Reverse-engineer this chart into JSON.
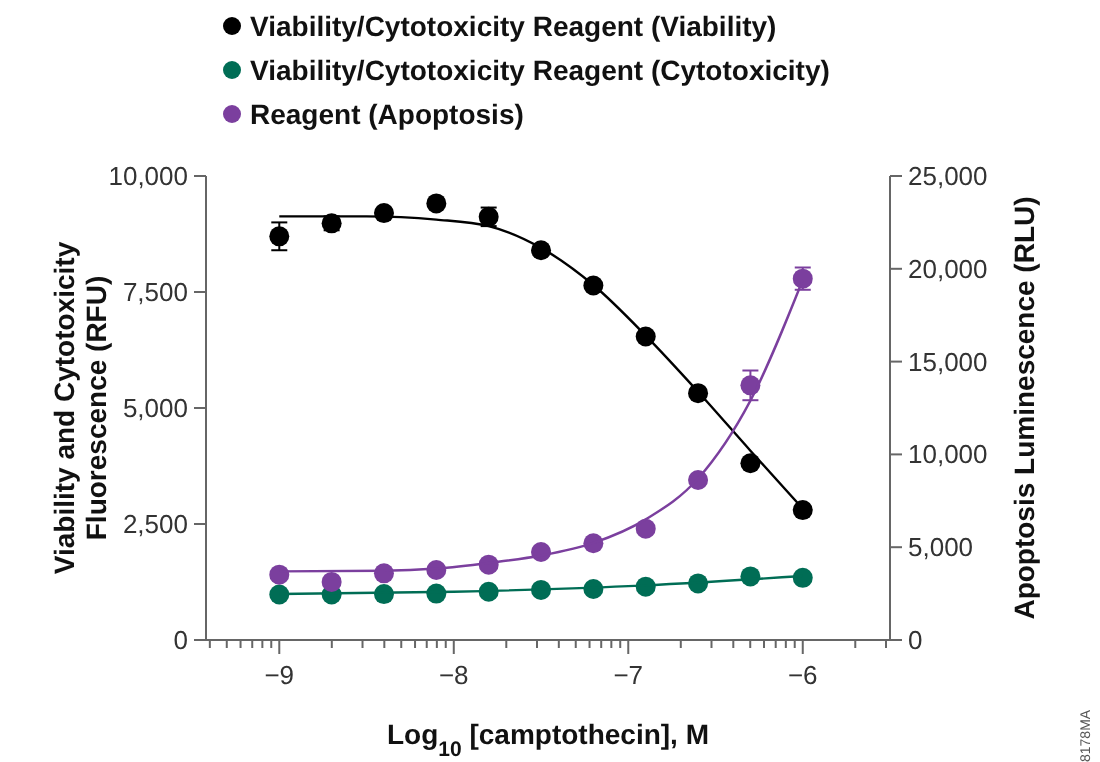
{
  "chart_data": {
    "type": "scatter",
    "xlabel": "Log$_{10}$ [camptothecin], M",
    "ylabel": "Viability and Cytotoxicity\nFluorescence (RFU)",
    "y2label": "Apoptosis Luminescence (RLU)",
    "annotations": [
      "8178MA"
    ],
    "x": [
      -9,
      -8.7,
      -8.4,
      -8.1,
      -7.8,
      -7.5,
      -7.2,
      -6.9,
      -6.6,
      -6.3,
      -6
    ],
    "xlim": [
      -9.42,
      -5.5
    ],
    "xticks": [
      {
        "value": -9.398,
        "label": null
      },
      {
        "value": -9.301,
        "label": null
      },
      {
        "value": -9.222,
        "label": null
      },
      {
        "value": -9.155,
        "label": null
      },
      {
        "value": -9.097,
        "label": null
      },
      {
        "value": -9.046,
        "label": null
      },
      {
        "value": -9,
        "label": "−9"
      },
      {
        "value": -8.699,
        "label": null
      },
      {
        "value": -8.523,
        "label": null
      },
      {
        "value": -8.398,
        "label": null
      },
      {
        "value": -8.301,
        "label": null
      },
      {
        "value": -8.222,
        "label": null
      },
      {
        "value": -8.155,
        "label": null
      },
      {
        "value": -8.097,
        "label": null
      },
      {
        "value": -8.046,
        "label": null
      },
      {
        "value": -8,
        "label": "−8"
      },
      {
        "value": -7.699,
        "label": null
      },
      {
        "value": -7.523,
        "label": null
      },
      {
        "value": -7.398,
        "label": null
      },
      {
        "value": -7.301,
        "label": null
      },
      {
        "value": -7.222,
        "label": null
      },
      {
        "value": -7.155,
        "label": null
      },
      {
        "value": -7.097,
        "label": null
      },
      {
        "value": -7.046,
        "label": null
      },
      {
        "value": -7,
        "label": "−7"
      },
      {
        "value": -6.699,
        "label": null
      },
      {
        "value": -6.523,
        "label": null
      },
      {
        "value": -6.398,
        "label": null
      },
      {
        "value": -6.301,
        "label": null
      },
      {
        "value": -6.222,
        "label": null
      },
      {
        "value": -6.155,
        "label": null
      },
      {
        "value": -6.097,
        "label": null
      },
      {
        "value": -6.046,
        "label": null
      },
      {
        "value": -6,
        "label": "−6"
      },
      {
        "value": -5.699,
        "label": null
      },
      {
        "value": -5.523,
        "label": null
      }
    ],
    "ylim": [
      0,
      10000
    ],
    "yticks": [
      0,
      {
        "value": 2500,
        "label": "2,500"
      },
      {
        "value": 5000,
        "label": "5,000"
      },
      {
        "value": 7500,
        "label": "7,500"
      },
      {
        "value": 10000,
        "label": "10,000"
      }
    ],
    "y2lim": [
      0,
      25000
    ],
    "y2ticks": [
      0,
      {
        "value": 5000,
        "label": "5,000"
      },
      {
        "value": 10000,
        "label": "10,000"
      },
      {
        "value": 15000,
        "label": "15,000"
      },
      {
        "value": 20000,
        "label": "20,000"
      },
      {
        "value": 25000,
        "label": "25,000"
      }
    ],
    "grid": false,
    "legend": "top",
    "marker": "circle",
    "line_style": "solid",
    "series": [
      {
        "name": "Viability/Cytotoxicity Reagent (Viability)",
        "color": "#000000",
        "values": [
          8700,
          8980,
          9200,
          9410,
          9120,
          8400,
          7640,
          6540,
          5320,
          3810,
          2800
        ],
        "errors": [
          300,
          150,
          null,
          null,
          200,
          null,
          null,
          null,
          null,
          null,
          null
        ]
      },
      {
        "name": "Viability/Cytotoxicity Reagent (Cytotoxicity)",
        "color": "#006d55",
        "values": [
          980,
          980,
          990,
          1000,
          1040,
          1080,
          1100,
          1150,
          1220,
          1370,
          1340
        ]
      },
      {
        "name": "Reagent (Apoptosis)",
        "color": "#7b3f9e",
        "axis": "y2",
        "values": [
          3520,
          3130,
          3590,
          3770,
          4060,
          4740,
          5210,
          6000,
          8620,
          13720,
          19470
        ],
        "errors": [
          null,
          null,
          null,
          null,
          null,
          null,
          null,
          null,
          null,
          800,
          600
        ]
      },
      {
        "type": "line",
        "marker": "none",
        "color": "#000000",
        "x": [
          -9,
          -8.5,
          -8.1,
          -7.8,
          -7.5,
          -7.2,
          -6.9,
          -6.6,
          -6.3,
          -6
        ],
        "values": [
          9130,
          9130,
          9060,
          8920,
          8450,
          7650,
          6560,
          5350,
          4080,
          2830
        ]
      },
      {
        "type": "line",
        "marker": "none",
        "color": "#006d55",
        "x": [
          -9,
          -8,
          -7,
          -6
        ],
        "values": [
          990,
          1040,
          1160,
          1380
        ]
      },
      {
        "type": "line",
        "marker": "none",
        "color": "#7b3f9e",
        "axis": "y2",
        "x": [
          -9,
          -8.4,
          -8.1,
          -7.8,
          -7.5,
          -7.2,
          -6.9,
          -6.6,
          -6.3,
          -6
        ],
        "values": [
          3700,
          3730,
          3850,
          4150,
          4550,
          5230,
          6500,
          8700,
          12900,
          19400
        ]
      }
    ]
  }
}
